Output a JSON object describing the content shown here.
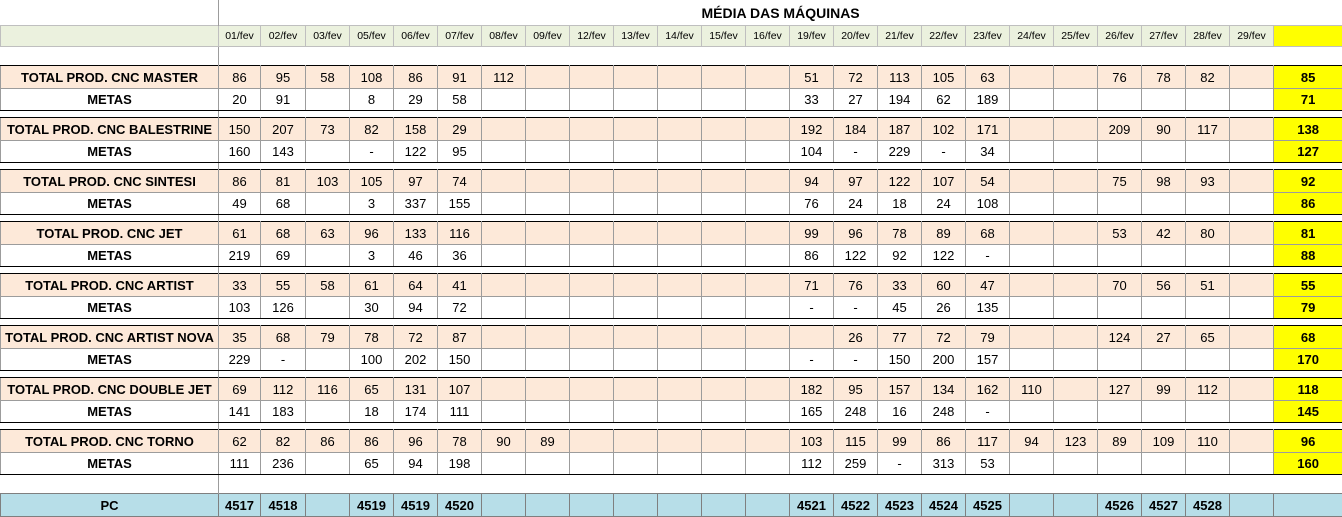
{
  "title": "MÉDIA DAS MÁQUINAS",
  "dates": [
    "01/fev",
    "02/fev",
    "03/fev",
    "05/fev",
    "06/fev",
    "07/fev",
    "08/fev",
    "09/fev",
    "12/fev",
    "13/fev",
    "14/fev",
    "15/fev",
    "16/fev",
    "19/fev",
    "20/fev",
    "21/fev",
    "22/fev",
    "23/fev",
    "24/fev",
    "25/fev",
    "26/fev",
    "27/fev",
    "28/fev",
    "29/fev"
  ],
  "machines": [
    {
      "total_label": "TOTAL PROD. CNC MASTER",
      "total": [
        "86",
        "95",
        "58",
        "108",
        "86",
        "91",
        "112",
        "",
        "",
        "",
        "",
        "",
        "",
        "51",
        "72",
        "113",
        "105",
        "63",
        "",
        "",
        "76",
        "78",
        "82",
        ""
      ],
      "total_avg": "85",
      "meta_label": "METAS",
      "meta": [
        "20",
        "91",
        "",
        "8",
        "29",
        "58",
        "",
        "",
        "",
        "",
        "",
        "",
        "",
        "33",
        "27",
        "194",
        "62",
        "189",
        "",
        "",
        "",
        "",
        "",
        ""
      ],
      "meta_avg": "71"
    },
    {
      "total_label": "TOTAL PROD. CNC BALESTRINE",
      "total": [
        "150",
        "207",
        "73",
        "82",
        "158",
        "29",
        "",
        "",
        "",
        "",
        "",
        "",
        "",
        "192",
        "184",
        "187",
        "102",
        "171",
        "",
        "",
        "209",
        "90",
        "117",
        ""
      ],
      "total_avg": "138",
      "meta_label": "METAS",
      "meta": [
        "160",
        "143",
        "",
        "-",
        "122",
        "95",
        "",
        "",
        "",
        "",
        "",
        "",
        "",
        "104",
        "-",
        "229",
        "-",
        "34",
        "",
        "",
        "",
        "",
        "",
        ""
      ],
      "meta_avg": "127"
    },
    {
      "total_label": "TOTAL PROD. CNC SINTESI",
      "total": [
        "86",
        "81",
        "103",
        "105",
        "97",
        "74",
        "",
        "",
        "",
        "",
        "",
        "",
        "",
        "94",
        "97",
        "122",
        "107",
        "54",
        "",
        "",
        "75",
        "98",
        "93",
        ""
      ],
      "total_avg": "92",
      "meta_label": "METAS",
      "meta": [
        "49",
        "68",
        "",
        "3",
        "337",
        "155",
        "",
        "",
        "",
        "",
        "",
        "",
        "",
        "76",
        "24",
        "18",
        "24",
        "108",
        "",
        "",
        "",
        "",
        "",
        ""
      ],
      "meta_avg": "86"
    },
    {
      "total_label": "TOTAL PROD. CNC JET",
      "total": [
        "61",
        "68",
        "63",
        "96",
        "133",
        "116",
        "",
        "",
        "",
        "",
        "",
        "",
        "",
        "99",
        "96",
        "78",
        "89",
        "68",
        "",
        "",
        "53",
        "42",
        "80",
        ""
      ],
      "total_avg": "81",
      "meta_label": "METAS",
      "meta": [
        "219",
        "69",
        "",
        "3",
        "46",
        "36",
        "",
        "",
        "",
        "",
        "",
        "",
        "",
        "86",
        "122",
        "92",
        "122",
        "-",
        "",
        "",
        "",
        "",
        "",
        ""
      ],
      "meta_avg": "88"
    },
    {
      "total_label": "TOTAL PROD. CNC ARTIST",
      "total": [
        "33",
        "55",
        "58",
        "61",
        "64",
        "41",
        "",
        "",
        "",
        "",
        "",
        "",
        "",
        "71",
        "76",
        "33",
        "60",
        "47",
        "",
        "",
        "70",
        "56",
        "51",
        ""
      ],
      "total_avg": "55",
      "meta_label": "METAS",
      "meta": [
        "103",
        "126",
        "",
        "30",
        "94",
        "72",
        "",
        "",
        "",
        "",
        "",
        "",
        "",
        "-",
        "-",
        "45",
        "26",
        "135",
        "",
        "",
        "",
        "",
        "",
        ""
      ],
      "meta_avg": "79"
    },
    {
      "total_label": "TOTAL PROD. CNC ARTIST NOVA",
      "total": [
        "35",
        "68",
        "79",
        "78",
        "72",
        "87",
        "",
        "",
        "",
        "",
        "",
        "",
        "",
        "",
        "26",
        "77",
        "72",
        "79",
        "",
        "",
        "124",
        "27",
        "65",
        ""
      ],
      "total_avg": "68",
      "meta_label": "METAS",
      "meta": [
        "229",
        "-",
        "",
        "100",
        "202",
        "150",
        "",
        "",
        "",
        "",
        "",
        "",
        "",
        "-",
        "-",
        "150",
        "200",
        "157",
        "",
        "",
        "",
        "",
        "",
        ""
      ],
      "meta_avg": "170"
    },
    {
      "total_label": "TOTAL PROD. CNC DOUBLE JET",
      "total": [
        "69",
        "112",
        "116",
        "65",
        "131",
        "107",
        "",
        "",
        "",
        "",
        "",
        "",
        "",
        "182",
        "95",
        "157",
        "134",
        "162",
        "110",
        "",
        "127",
        "99",
        "112",
        ""
      ],
      "total_avg": "118",
      "meta_label": "METAS",
      "meta": [
        "141",
        "183",
        "",
        "18",
        "174",
        "111",
        "",
        "",
        "",
        "",
        "",
        "",
        "",
        "165",
        "248",
        "16",
        "248",
        "-",
        "",
        "",
        "",
        "",
        "",
        ""
      ],
      "meta_avg": "145"
    },
    {
      "total_label": "TOTAL PROD. CNC TORNO",
      "total": [
        "62",
        "82",
        "86",
        "86",
        "96",
        "78",
        "90",
        "89",
        "",
        "",
        "",
        "",
        "",
        "103",
        "115",
        "99",
        "86",
        "117",
        "94",
        "123",
        "89",
        "109",
        "110",
        ""
      ],
      "total_avg": "96",
      "meta_label": "METAS",
      "meta": [
        "111",
        "236",
        "",
        "65",
        "94",
        "198",
        "",
        "",
        "",
        "",
        "",
        "",
        "",
        "112",
        "259",
        "-",
        "313",
        "53",
        "",
        "",
        "",
        "",
        "",
        ""
      ],
      "meta_avg": "160"
    }
  ],
  "pc": {
    "label": "PC",
    "values": [
      "4517",
      "4518",
      "",
      "4519",
      "4519",
      "4520",
      "",
      "",
      "",
      "",
      "",
      "",
      "",
      "4521",
      "4522",
      "4523",
      "4524",
      "4525",
      "",
      "",
      "4526",
      "4527",
      "4528",
      ""
    ]
  },
  "colors": {
    "header_green": "#ebf1de",
    "total_peach": "#fde9d9",
    "average_yellow": "#ffff00",
    "pc_blue": "#b7dee8"
  }
}
